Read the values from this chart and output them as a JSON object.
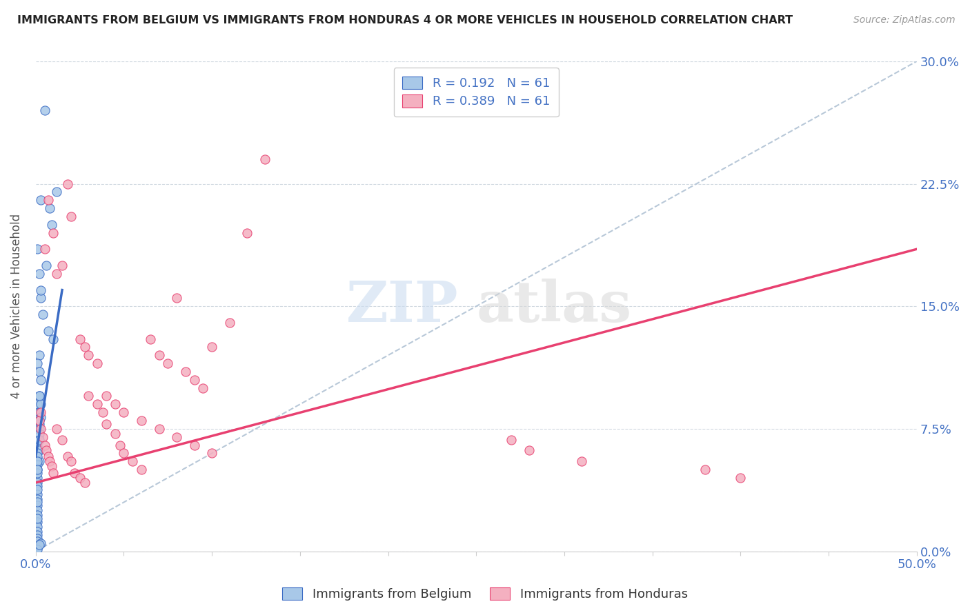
{
  "title": "IMMIGRANTS FROM BELGIUM VS IMMIGRANTS FROM HONDURAS 4 OR MORE VEHICLES IN HOUSEHOLD CORRELATION CHART",
  "source": "Source: ZipAtlas.com",
  "ylabel": "4 or more Vehicles in Household",
  "xlim": [
    0,
    0.5
  ],
  "ylim": [
    0,
    0.3
  ],
  "xticks": [
    0.0,
    0.05,
    0.1,
    0.15,
    0.2,
    0.25,
    0.3,
    0.35,
    0.4,
    0.45,
    0.5
  ],
  "yticks": [
    0.0,
    0.075,
    0.15,
    0.225,
    0.3
  ],
  "ytick_labels": [
    "0.0%",
    "7.5%",
    "15.0%",
    "22.5%",
    "30.0%"
  ],
  "belgium_color": "#a8c8e8",
  "honduras_color": "#f4b0c0",
  "belgium_line_color": "#3a6bc4",
  "honduras_line_color": "#e84070",
  "ref_line_color": "#b8c8d8",
  "belgium_R": 0.192,
  "honduras_R": 0.389,
  "N": 61,
  "watermark_zip": "ZIP",
  "watermark_atlas": "atlas",
  "belgium_x": [
    0.005,
    0.008,
    0.009,
    0.012,
    0.003,
    0.006,
    0.003,
    0.004,
    0.007,
    0.01,
    0.001,
    0.002,
    0.003,
    0.002,
    0.001,
    0.002,
    0.003,
    0.002,
    0.001,
    0.002,
    0.003,
    0.002,
    0.003,
    0.002,
    0.001,
    0.002,
    0.001,
    0.001,
    0.002,
    0.001,
    0.001,
    0.001,
    0.001,
    0.001,
    0.001,
    0.001,
    0.002,
    0.002,
    0.002,
    0.001,
    0.001,
    0.001,
    0.001,
    0.001,
    0.001,
    0.001,
    0.001,
    0.001,
    0.001,
    0.001,
    0.001,
    0.001,
    0.001,
    0.001,
    0.001,
    0.002,
    0.001,
    0.001,
    0.003,
    0.001,
    0.002
  ],
  "belgium_y": [
    0.27,
    0.21,
    0.2,
    0.22,
    0.215,
    0.175,
    0.155,
    0.145,
    0.135,
    0.13,
    0.185,
    0.17,
    0.16,
    0.12,
    0.115,
    0.11,
    0.105,
    0.095,
    0.09,
    0.085,
    0.082,
    0.078,
    0.09,
    0.095,
    0.065,
    0.062,
    0.075,
    0.06,
    0.055,
    0.058,
    0.053,
    0.05,
    0.045,
    0.042,
    0.04,
    0.048,
    0.08,
    0.075,
    0.072,
    0.035,
    0.032,
    0.028,
    0.025,
    0.022,
    0.018,
    0.015,
    0.012,
    0.01,
    0.008,
    0.006,
    0.038,
    0.03,
    0.02,
    0.055,
    0.05,
    0.068,
    0.003,
    0.002,
    0.005,
    0.001,
    0.004
  ],
  "honduras_x": [
    0.002,
    0.003,
    0.004,
    0.005,
    0.006,
    0.007,
    0.008,
    0.009,
    0.01,
    0.012,
    0.015,
    0.018,
    0.02,
    0.022,
    0.025,
    0.028,
    0.03,
    0.035,
    0.038,
    0.04,
    0.045,
    0.048,
    0.05,
    0.055,
    0.06,
    0.065,
    0.07,
    0.075,
    0.08,
    0.085,
    0.09,
    0.095,
    0.1,
    0.11,
    0.12,
    0.13,
    0.003,
    0.005,
    0.007,
    0.01,
    0.012,
    0.015,
    0.018,
    0.02,
    0.025,
    0.028,
    0.03,
    0.035,
    0.04,
    0.045,
    0.05,
    0.06,
    0.07,
    0.08,
    0.09,
    0.1,
    0.27,
    0.28,
    0.31,
    0.38,
    0.4
  ],
  "honduras_y": [
    0.08,
    0.075,
    0.07,
    0.065,
    0.062,
    0.058,
    0.055,
    0.052,
    0.048,
    0.075,
    0.068,
    0.058,
    0.055,
    0.048,
    0.045,
    0.042,
    0.095,
    0.09,
    0.085,
    0.078,
    0.072,
    0.065,
    0.06,
    0.055,
    0.05,
    0.13,
    0.12,
    0.115,
    0.155,
    0.11,
    0.105,
    0.1,
    0.125,
    0.14,
    0.195,
    0.24,
    0.085,
    0.185,
    0.215,
    0.195,
    0.17,
    0.175,
    0.225,
    0.205,
    0.13,
    0.125,
    0.12,
    0.115,
    0.095,
    0.09,
    0.085,
    0.08,
    0.075,
    0.07,
    0.065,
    0.06,
    0.068,
    0.062,
    0.055,
    0.05,
    0.045
  ],
  "belgium_line_x": [
    0.0,
    0.015
  ],
  "belgium_line_y": [
    0.058,
    0.16
  ],
  "honduras_line_x": [
    0.0,
    0.5
  ],
  "honduras_line_y": [
    0.042,
    0.185
  ]
}
